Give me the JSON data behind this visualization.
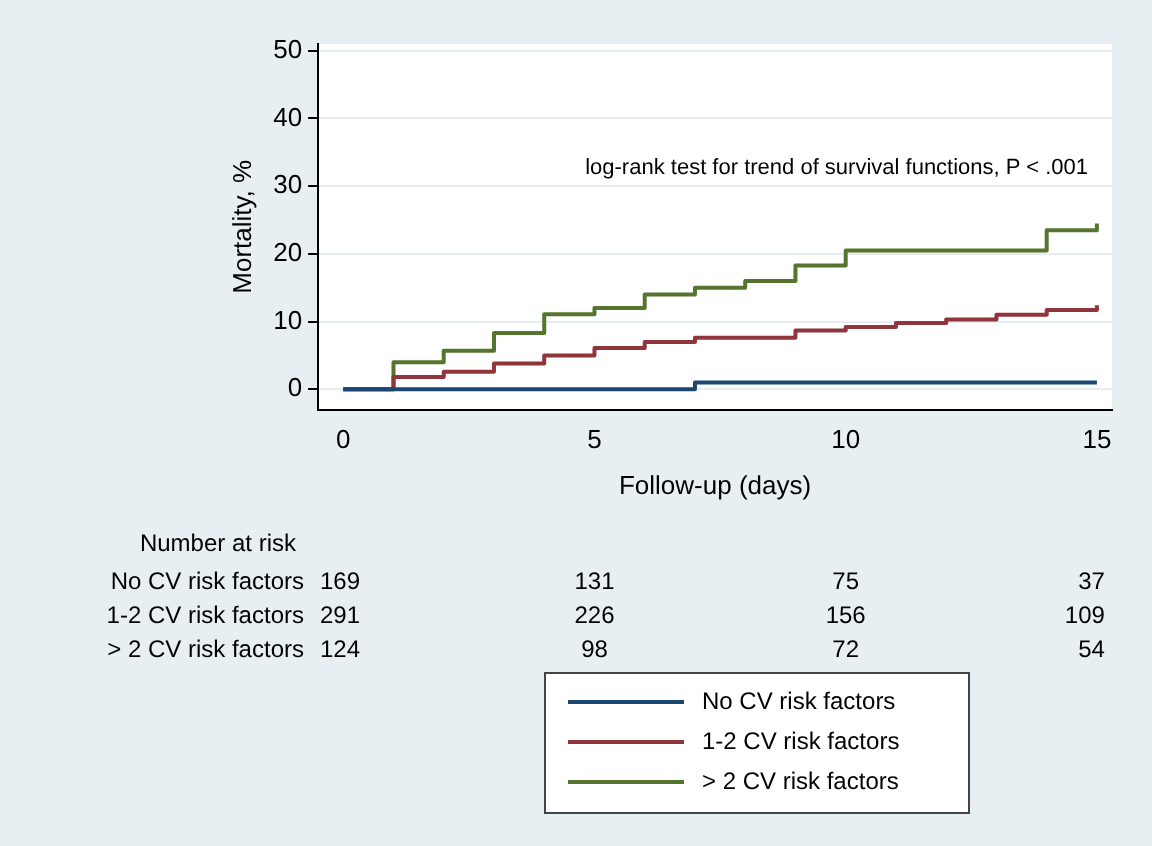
{
  "chart_data": {
    "type": "step",
    "xlabel": "Follow-up (days)",
    "ylabel": "Mortality, %",
    "xlim": [
      -0.5,
      15.3
    ],
    "xticks": [
      0,
      5,
      10,
      15
    ],
    "ylim": [
      -3,
      51
    ],
    "yticks": [
      0,
      10,
      20,
      30,
      40,
      50
    ],
    "grid": "y",
    "legend": "bottom",
    "marker": "none",
    "line_style": "solid",
    "series": [
      {
        "name": "No CV risk factors",
        "color": "#1a476f",
        "x": [
          0,
          7,
          15
        ],
        "values": [
          0,
          1.0,
          1.0
        ]
      },
      {
        "name": "1-2 CV risk factors",
        "color": "#90353b",
        "x": [
          0,
          1,
          2,
          3,
          4,
          5,
          6,
          7,
          9,
          10,
          11,
          12,
          13,
          14,
          15
        ],
        "values": [
          0,
          1.8,
          2.6,
          3.8,
          5.0,
          6.1,
          7.0,
          7.6,
          8.7,
          9.2,
          9.8,
          10.3,
          11.0,
          11.7,
          12.4
        ]
      },
      {
        "name": "> 2 CV risk factors",
        "color": "#55752f",
        "x": [
          0,
          1,
          2,
          3,
          4,
          5,
          6,
          7,
          8,
          9,
          10,
          14,
          15
        ],
        "values": [
          0,
          4.0,
          5.7,
          8.3,
          11.1,
          12.0,
          14.0,
          15.0,
          16.0,
          18.3,
          20.5,
          23.5,
          24.5
        ]
      }
    ],
    "annotations": [
      "log-rank test for trend of survival functions, P < .001",
      "Number at risk",
      "No CV risk factors",
      "169",
      "131",
      "75",
      "37",
      "1-2 CV risk factors",
      "291",
      "226",
      "156",
      "109",
      "> 2 CV risk factors",
      "124",
      "98",
      "72",
      "54"
    ]
  }
}
